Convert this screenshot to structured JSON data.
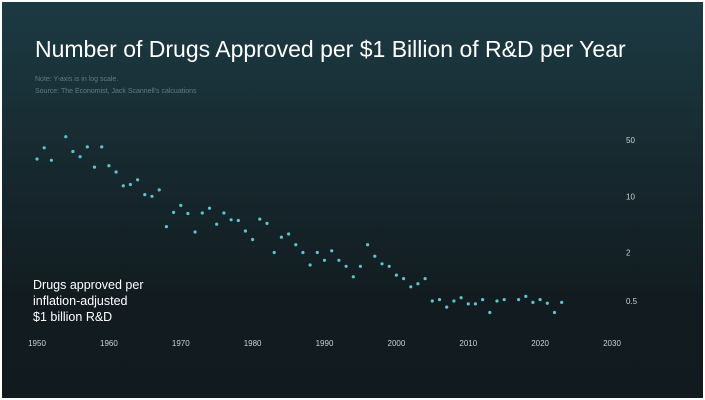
{
  "chart_data": {
    "type": "scatter",
    "title": "Number of Drugs Approved per $1 Billion of R&D per Year",
    "notes": [
      "Note: Y-axis is in log scale.",
      "Source: The Economist, Jack Scannell's calcuations"
    ],
    "ylabel_lines": [
      "Drugs approved per",
      "inflation-adjusted",
      "$1 billion R&D"
    ],
    "y_scale": "log",
    "xlim": [
      1950,
      2030
    ],
    "x_ticks": [
      "1950",
      "1960",
      "1970",
      "1980",
      "1990",
      "2000",
      "2010",
      "2020",
      "2030"
    ],
    "y_ticks": [
      {
        "value": 50,
        "label": "50"
      },
      {
        "value": 10,
        "label": "10"
      },
      {
        "value": 2,
        "label": "2"
      },
      {
        "value": 0.5,
        "label": "0.5"
      }
    ],
    "grid": false,
    "point_color": "#5fc3cf",
    "points": [
      {
        "x": 1950,
        "y": 29
      },
      {
        "x": 1951,
        "y": 40
      },
      {
        "x": 1952,
        "y": 28
      },
      {
        "x": 1954,
        "y": 55
      },
      {
        "x": 1955,
        "y": 36
      },
      {
        "x": 1956,
        "y": 31
      },
      {
        "x": 1957,
        "y": 41
      },
      {
        "x": 1958,
        "y": 23
      },
      {
        "x": 1959,
        "y": 41
      },
      {
        "x": 1960,
        "y": 24
      },
      {
        "x": 1961,
        "y": 20
      },
      {
        "x": 1962,
        "y": 13.5
      },
      {
        "x": 1963,
        "y": 14
      },
      {
        "x": 1964,
        "y": 16
      },
      {
        "x": 1965,
        "y": 10.5
      },
      {
        "x": 1966,
        "y": 10
      },
      {
        "x": 1967,
        "y": 12
      },
      {
        "x": 1968,
        "y": 4.2
      },
      {
        "x": 1969,
        "y": 6.3
      },
      {
        "x": 1970,
        "y": 7.7
      },
      {
        "x": 1971,
        "y": 6.1
      },
      {
        "x": 1972,
        "y": 3.6
      },
      {
        "x": 1973,
        "y": 6.2
      },
      {
        "x": 1974,
        "y": 7.1
      },
      {
        "x": 1975,
        "y": 4.5
      },
      {
        "x": 1976,
        "y": 6.2
      },
      {
        "x": 1977,
        "y": 5.1
      },
      {
        "x": 1978,
        "y": 5.0
      },
      {
        "x": 1979,
        "y": 3.7
      },
      {
        "x": 1980,
        "y": 2.9
      },
      {
        "x": 1981,
        "y": 5.2
      },
      {
        "x": 1982,
        "y": 4.6
      },
      {
        "x": 1983,
        "y": 2.0
      },
      {
        "x": 1984,
        "y": 3.1
      },
      {
        "x": 1985,
        "y": 3.4
      },
      {
        "x": 1986,
        "y": 2.5
      },
      {
        "x": 1987,
        "y": 2.0
      },
      {
        "x": 1988,
        "y": 1.4
      },
      {
        "x": 1989,
        "y": 2.0
      },
      {
        "x": 1990,
        "y": 1.6
      },
      {
        "x": 1991,
        "y": 2.1
      },
      {
        "x": 1992,
        "y": 1.6
      },
      {
        "x": 1993,
        "y": 1.35
      },
      {
        "x": 1994,
        "y": 1.0
      },
      {
        "x": 1995,
        "y": 1.35
      },
      {
        "x": 1996,
        "y": 2.5
      },
      {
        "x": 1997,
        "y": 1.8
      },
      {
        "x": 1998,
        "y": 1.45
      },
      {
        "x": 1999,
        "y": 1.35
      },
      {
        "x": 2000,
        "y": 1.05
      },
      {
        "x": 2001,
        "y": 0.95
      },
      {
        "x": 2002,
        "y": 0.75
      },
      {
        "x": 2003,
        "y": 0.82
      },
      {
        "x": 2004,
        "y": 0.95
      },
      {
        "x": 2005,
        "y": 0.5
      },
      {
        "x": 2006,
        "y": 0.52
      },
      {
        "x": 2007,
        "y": 0.42
      },
      {
        "x": 2008,
        "y": 0.5
      },
      {
        "x": 2009,
        "y": 0.55
      },
      {
        "x": 2010,
        "y": 0.46
      },
      {
        "x": 2011,
        "y": 0.46
      },
      {
        "x": 2012,
        "y": 0.52
      },
      {
        "x": 2013,
        "y": 0.36
      },
      {
        "x": 2014,
        "y": 0.5
      },
      {
        "x": 2015,
        "y": 0.52
      },
      {
        "x": 2017,
        "y": 0.52
      },
      {
        "x": 2018,
        "y": 0.57
      },
      {
        "x": 2019,
        "y": 0.48
      },
      {
        "x": 2020,
        "y": 0.52
      },
      {
        "x": 2021,
        "y": 0.47
      },
      {
        "x": 2022,
        "y": 0.36
      },
      {
        "x": 2023,
        "y": 0.48
      }
    ]
  }
}
